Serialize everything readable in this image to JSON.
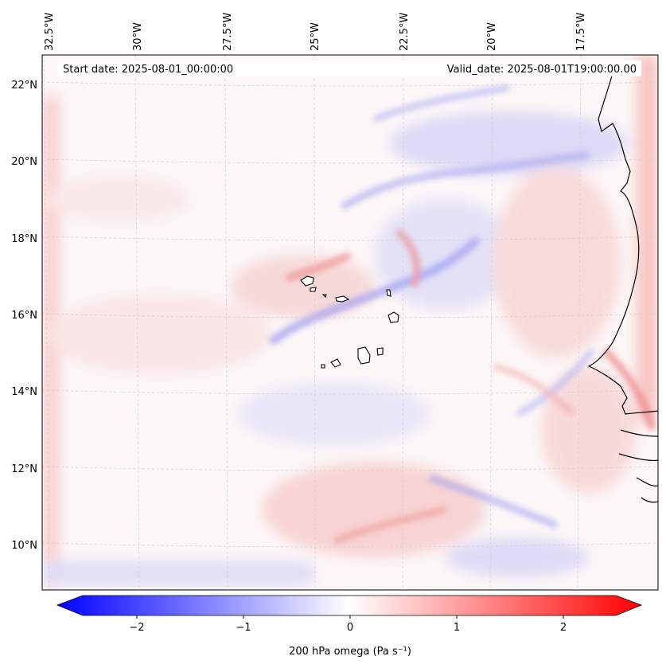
{
  "header": {
    "start_date": "Start date: 2025-08-01_00:00:00",
    "valid_date": "Valid_date: 2025-08-01T19:00:00.00"
  },
  "map": {
    "projection": "lambert-conformal",
    "lon_range": [
      -33.0,
      -15.5
    ],
    "lat_range": [
      9.0,
      22.8
    ],
    "gridlines": "dashed light gray",
    "lon_ticks": [
      "32.5°W",
      "30°W",
      "27.5°W",
      "25°W",
      "22.5°W",
      "20°W",
      "17.5°W"
    ],
    "lat_ticks": [
      "22°N",
      "20°N",
      "18°N",
      "16°N",
      "14°N",
      "12°N",
      "10°N"
    ],
    "field": "200 hPa omega",
    "features": [
      "West African coastline",
      "Cape Verde islands"
    ]
  },
  "colorbar": {
    "label": "200 hPa omega (Pa s⁻¹)",
    "ticks": [
      "−2",
      "−1",
      "0",
      "1",
      "2"
    ],
    "tick_values": [
      -2,
      -1,
      0,
      1,
      2
    ],
    "range": [
      -2.5,
      2.5
    ],
    "extend": "both",
    "colors": {
      "min": "#0000ff",
      "mid": "#ffffff",
      "max": "#ff0000"
    }
  },
  "chart_data": {
    "type": "heatmap",
    "title": "",
    "colorbar_label": "200 hPa omega (Pa s⁻¹)",
    "value_range": [
      -2.5,
      2.5
    ],
    "colormap": "bwr",
    "x_ticks": [
      "32.5°W",
      "30°W",
      "27.5°W",
      "25°W",
      "22.5°W",
      "20°W",
      "17.5°W"
    ],
    "y_ticks": [
      "22°N",
      "20°N",
      "18°N",
      "16°N",
      "14°N",
      "12°N",
      "10°N"
    ]
  }
}
